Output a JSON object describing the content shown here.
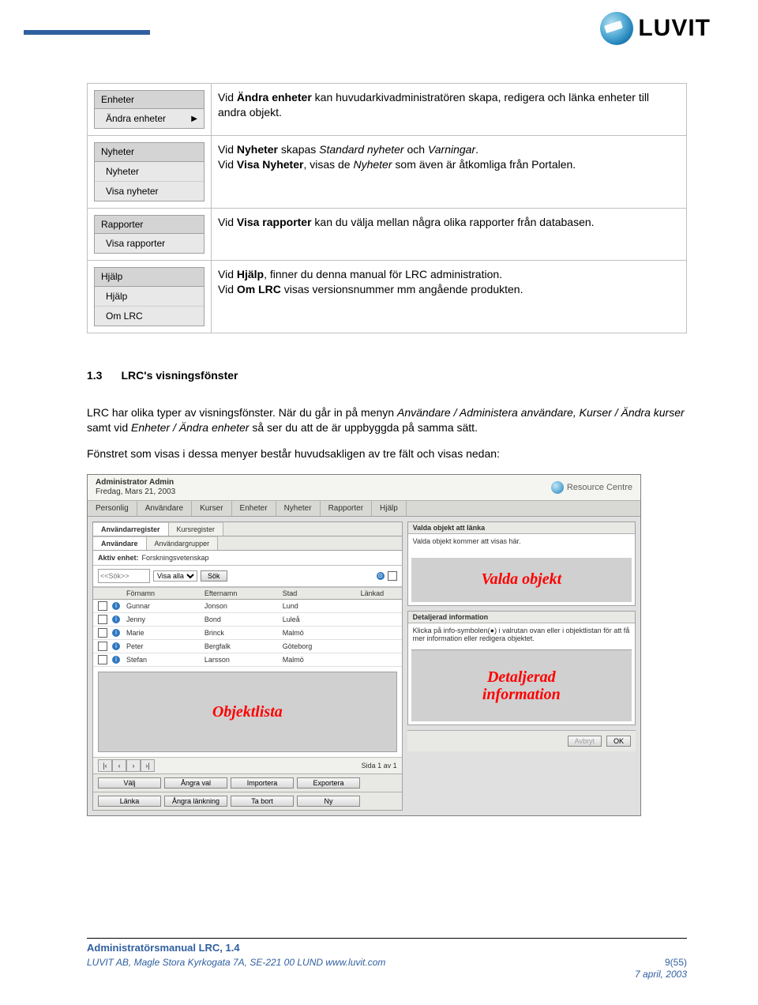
{
  "brand": {
    "name": "LUVIT"
  },
  "menu_table": [
    {
      "header": "Enheter",
      "items": [
        "Ändra enheter"
      ],
      "has_arrow": true,
      "desc_html": "Vid <b>Ändra enheter</b> kan huvudarkivadministratören skapa, redigera och länka enheter till andra objekt."
    },
    {
      "header": "Nyheter",
      "items": [
        "Nyheter",
        "Visa nyheter"
      ],
      "has_arrow": false,
      "desc_html": "Vid <b>Nyheter</b> skapas <i>Standard nyheter</i> och <i>Varningar</i>.<br>Vid <b>Visa Nyheter</b>, visas de <i>Nyheter</i> som även är åtkomliga från Portalen."
    },
    {
      "header": "Rapporter",
      "items": [
        "Visa rapporter"
      ],
      "has_arrow": false,
      "desc_html": "Vid <b>Visa rapporter</b> kan du välja mellan några olika rapporter från databasen."
    },
    {
      "header": "Hjälp",
      "items": [
        "Hjälp",
        "Om LRC"
      ],
      "has_arrow": false,
      "desc_html": "Vid <b>Hjälp</b>, finner du denna manual för LRC administration.<br>Vid <b>Om LRC</b> visas versionsnummer mm angående produkten."
    }
  ],
  "section": {
    "num": "1.3",
    "title": "LRC's visningsfönster"
  },
  "para1_html": "LRC har olika typer av visningsfönster. När du går in på menyn <i>Användare / Administera användare, Kurser / Ändra kurser</i> samt vid <i>Enheter / Ändra enheter</i> så ser du att de är uppbyggda på samma sätt.",
  "para2": "Fönstret som visas i dessa menyer består huvudsakligen av tre fält och visas nedan:",
  "ui": {
    "admin_title": "Administrator Admin",
    "admin_date": "Fredag, Mars 21, 2003",
    "resource_centre": "Resource Centre",
    "menubar": [
      "Personlig",
      "Användare",
      "Kurser",
      "Enheter",
      "Nyheter",
      "Rapporter",
      "Hjälp"
    ],
    "main_tabs": [
      "Användarregister",
      "Kursregister"
    ],
    "sub_tabs": [
      "Användare",
      "Användargrupper"
    ],
    "aktiv_enhet_label": "Aktiv enhet:",
    "aktiv_enhet_value": "Forskningsvetenskap",
    "search_placeholder": "<<Sök>>",
    "visa_alla": "Visa alla",
    "sok_btn": "Sök",
    "list_headers": [
      "Förnamn",
      "Efternamn",
      "Stad",
      "Länkad"
    ],
    "list_rows": [
      [
        "Gunnar",
        "Jonson",
        "Lund"
      ],
      [
        "Jenny",
        "Bond",
        "Luleå"
      ],
      [
        "Marie",
        "Brinck",
        "Malmö"
      ],
      [
        "Peter",
        "Bergfalk",
        "Göteborg"
      ],
      [
        "Stefan",
        "Larsson",
        "Malmö"
      ]
    ],
    "objektlista": "Objektlista",
    "pager_text": "Sida 1 av 1",
    "buttons_row1": [
      "Välj",
      "Ångra val",
      "Importera",
      "Exportera"
    ],
    "buttons_row2": [
      "Länka",
      "Ångra länkning",
      "Ta bort",
      "Ny"
    ],
    "valda_title": "Valda objekt att länka",
    "valda_body": "Valda objekt kommer att visas här.",
    "valda_red": "Valda objekt",
    "detalj_title": "Detaljerad information",
    "detalj_body": "Klicka på info-symbolen(●) i valrutan ovan eller i objektlistan för att få mer information eller redigera objektet.",
    "detalj_red1": "Detaljerad",
    "detalj_red2": "information",
    "avbryt": "Avbryt",
    "ok": "OK"
  },
  "footer": {
    "title": "Administratörsmanual LRC, 1.4",
    "addr": "LUVIT AB, Magle Stora Kyrkogata 7A, SE-221 00  LUND www.luvit.com",
    "page": "9(55)",
    "date": "7 april, 2003"
  }
}
